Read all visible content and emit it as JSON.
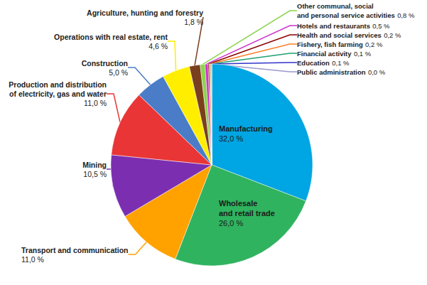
{
  "chart_data": {
    "type": "pie",
    "categories": [
      "Manufacturing",
      "Wholesale\nand retail trade",
      "Transport and communication",
      "Mining",
      "Production and distribution\nof electricity, gas and water",
      "Construction",
      "Operations with real estate, rent",
      "Agriculture, hunting and forestry",
      "Other communal, social\nand personal service activities",
      "Hotels and restaurants",
      "Health and social services",
      "Fishery, fish farming",
      "Financial activity",
      "Education",
      "Public administration"
    ],
    "values": [
      32.0,
      26.0,
      11.0,
      10.5,
      11.0,
      5.0,
      4.6,
      1.8,
      0.8,
      0.5,
      0.2,
      0.2,
      0.1,
      0.1,
      0.0
    ],
    "value_labels": [
      "32,0 %",
      "26,0 %",
      "11,0 %",
      "10,5 %",
      "11,0 %",
      "5,0 %",
      "4,6 %",
      "1,8 %",
      "0,8 %",
      "0,5 %",
      "0,2 %",
      "0,2 %",
      "0,1 %",
      "0,1 %",
      "0,0 %"
    ],
    "colors": [
      "#00a5e3",
      "#2fb35f",
      "#ffa200",
      "#7b2fb0",
      "#e93535",
      "#4a7cc7",
      "#ffee00",
      "#7a3f1e",
      "#8bd44a",
      "#cc33cc",
      "#8b0000",
      "#ff7f27",
      "#20a070",
      "#3333cc",
      "#9999cc"
    ],
    "data_labels": true
  }
}
